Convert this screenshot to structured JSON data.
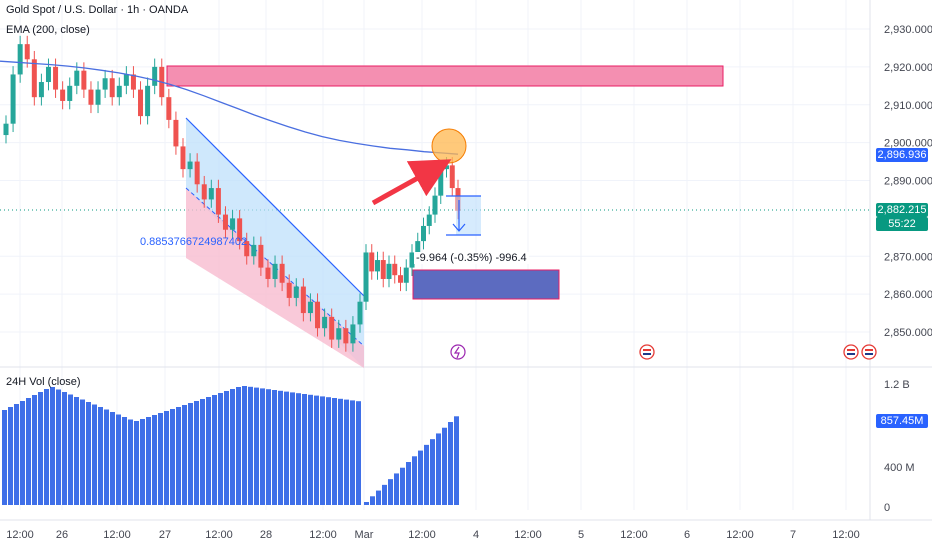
{
  "header": {
    "title": "Gold Spot / U.S. Dollar · 1h · OANDA",
    "ema_label": "EMA (200, close)",
    "volume_label": "24H Vol (close)"
  },
  "chart_data": [
    {
      "type": "candlestick",
      "title": "Gold Spot / U.S. Dollar · 1h · OANDA",
      "ylim": [
        2843,
        2934
      ],
      "y_ticks": [
        "2,930.000",
        "2,920.000",
        "2,910.000",
        "2,900.000",
        "2,890.000",
        "2,870.000",
        "2,860.000",
        "2,850.000"
      ],
      "x_ticks": [
        "12:00",
        "26",
        "12:00",
        "27",
        "12:00",
        "28",
        "12:00",
        "Mar",
        "12:00",
        "4",
        "12:00",
        "5",
        "12:00",
        "6",
        "12:00",
        "7",
        "12:00"
      ],
      "series": [
        {
          "name": "EMA (200, close)",
          "color": "#4a6fe0",
          "values": [
            2921.5,
            2921.2,
            2920.9,
            2920.6,
            2920.2,
            2919.7,
            2919.1,
            2918.4,
            2917.6,
            2916.6,
            2915.4,
            2914.0,
            2912.4,
            2910.7,
            2909.0,
            2907.3,
            2905.7,
            2904.2,
            2902.8,
            2901.6,
            2900.6,
            2899.8,
            2899.1,
            2898.5,
            2898.1,
            2897.6,
            2897.3,
            2896.936
          ]
        }
      ],
      "last_price": "2,882.215",
      "countdown": "55:22",
      "ema_price": "2,896.936",
      "annotations": {
        "fib_label": "0.8853766724987402",
        "measure_label": "-9.964 (-0.35%) -996.4"
      },
      "colors": {
        "up": "#26a69a",
        "down": "#ef5350",
        "ema": "#4a6fe0",
        "resistance_zone": "#f48fb1",
        "support_zone": "#5c6bc0"
      }
    },
    {
      "type": "bar",
      "title": "24H Vol (close)",
      "y_ticks": [
        "1.2 B",
        "400 M",
        "0"
      ],
      "last_value": "857.45M",
      "color": "#3f6fe8"
    }
  ]
}
